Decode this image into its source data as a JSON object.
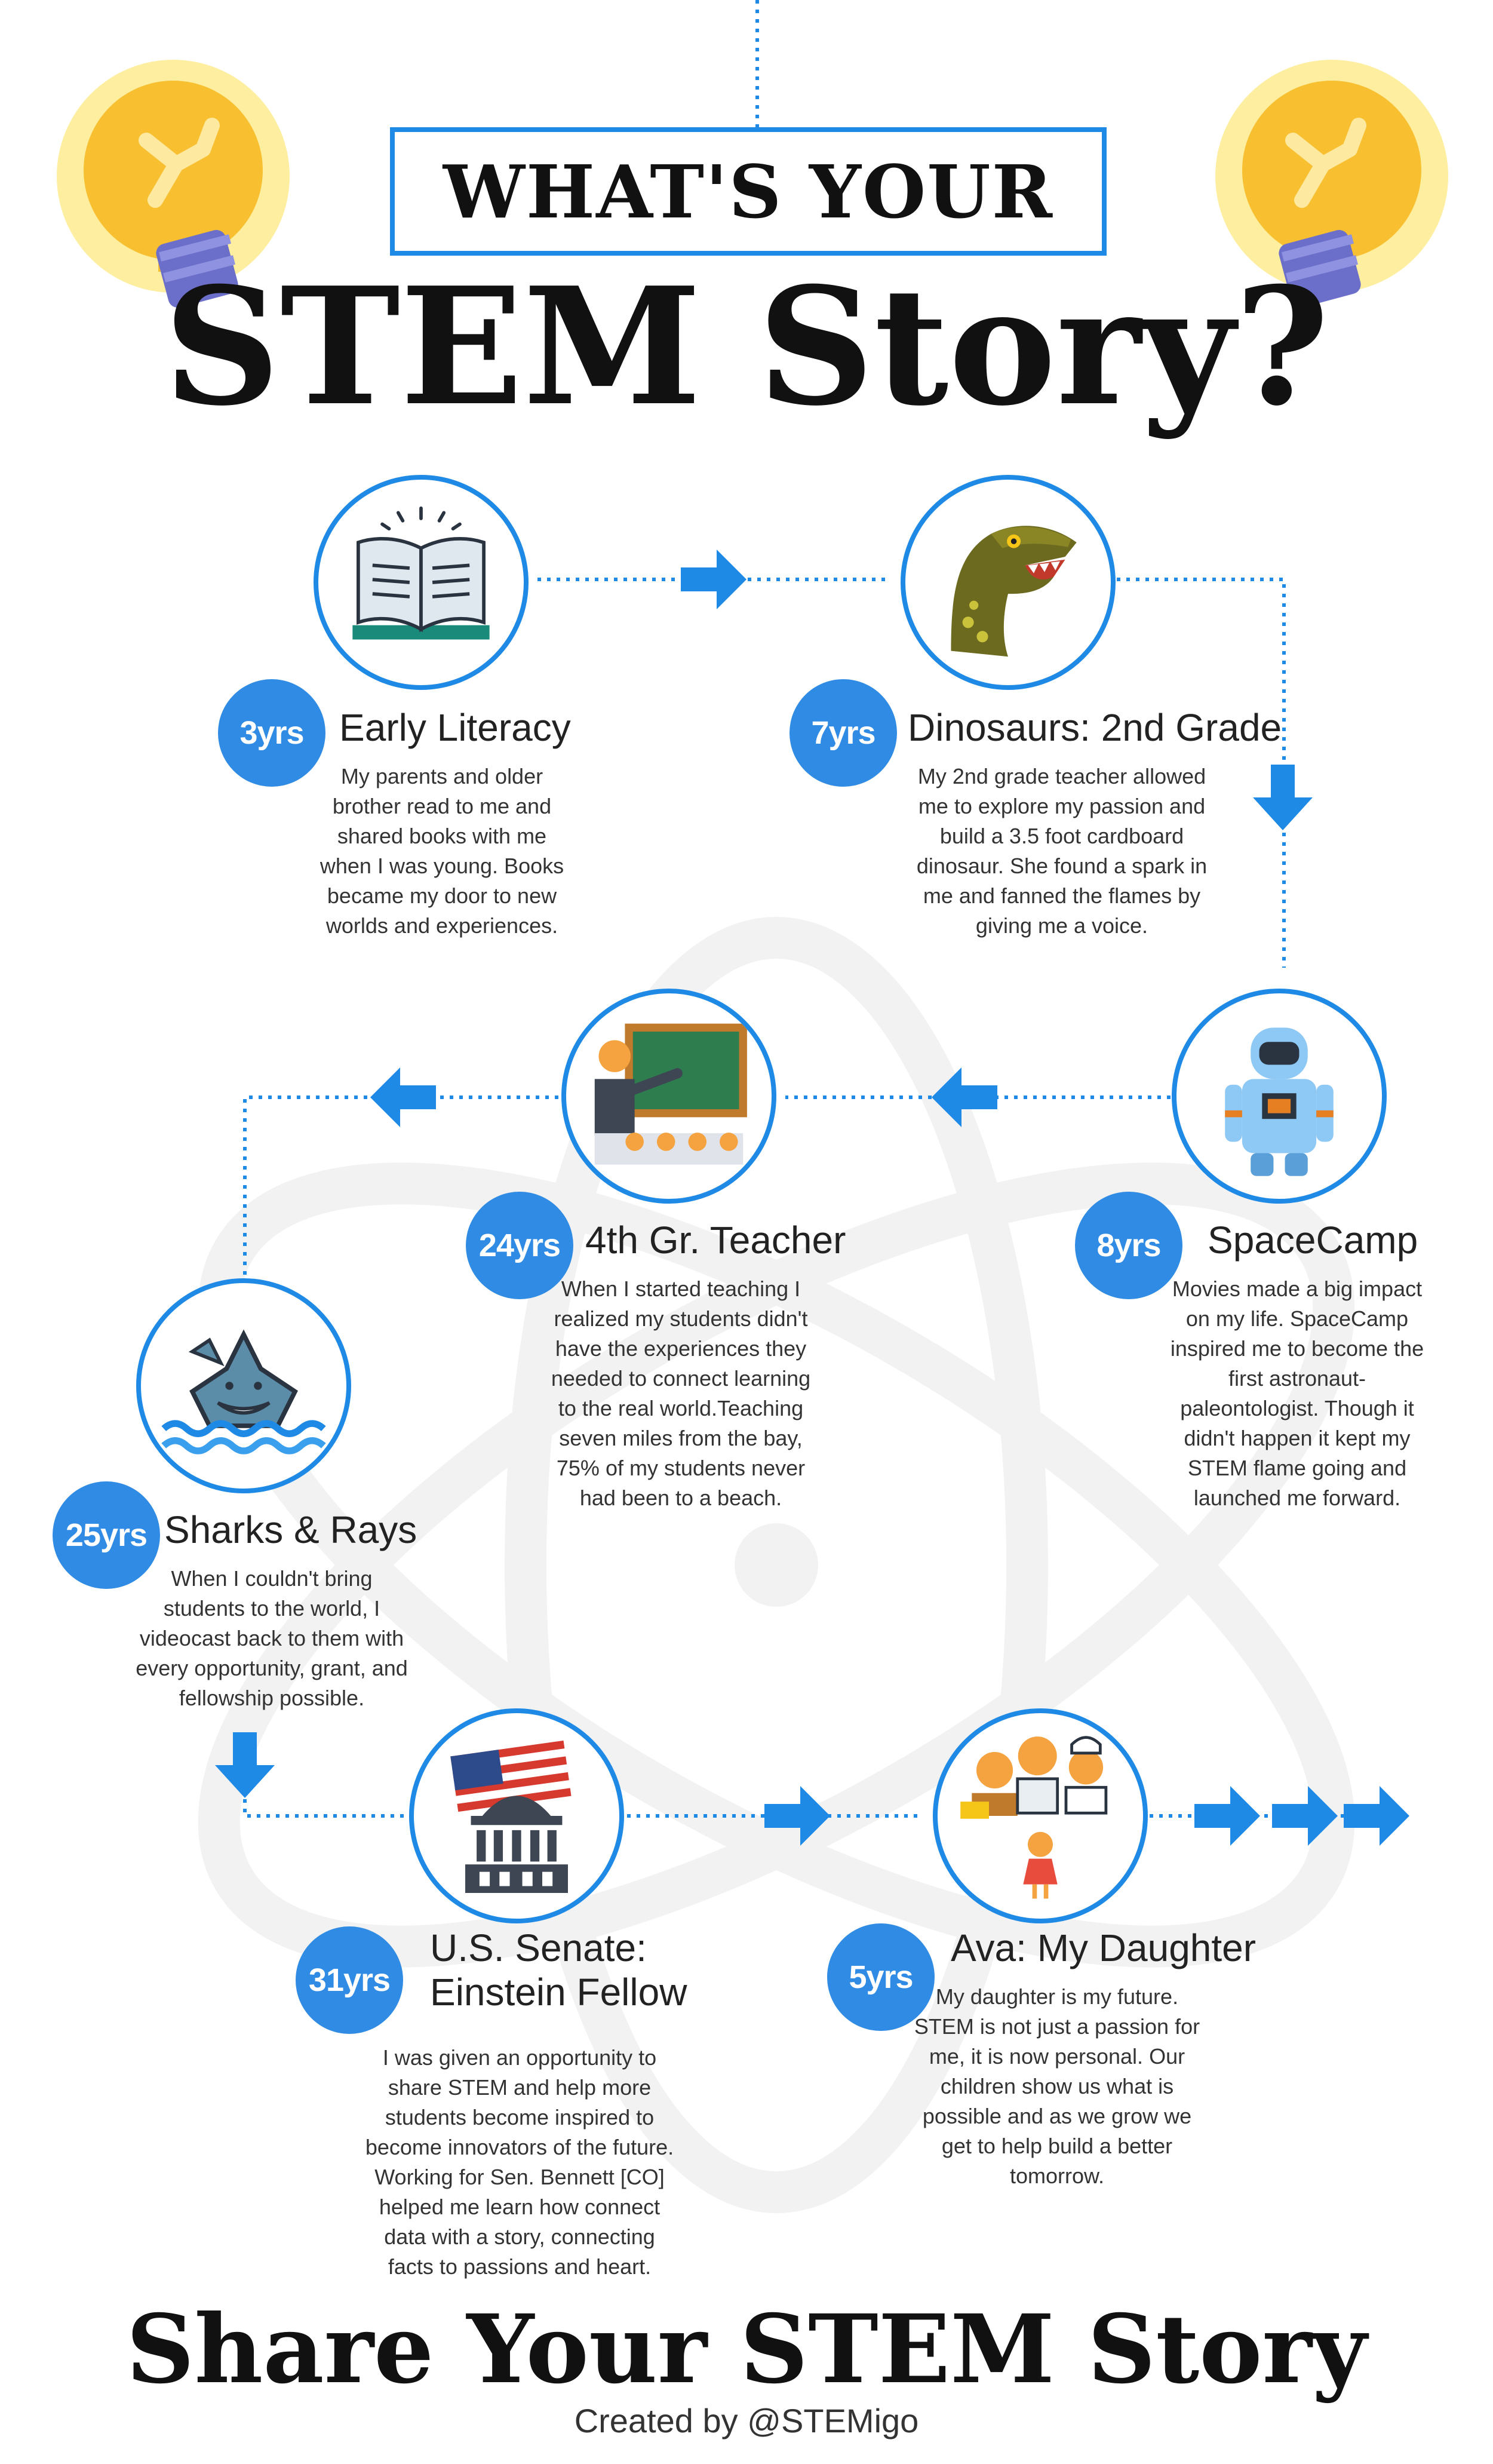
{
  "header": {
    "line1": "WHAT'S YOUR",
    "line2": "STEM Story?"
  },
  "milestones": [
    {
      "age": "3yrs",
      "title": "Early Literacy",
      "icon": "book-icon",
      "lines": [
        "My parents and older",
        "brother read to me and",
        "shared books with me",
        "when I was young. Books",
        "became my door to new",
        "worlds and experiences."
      ]
    },
    {
      "age": "7yrs",
      "title": "Dinosaurs: 2nd Grade",
      "icon": "dinosaur-icon",
      "lines": [
        "My 2nd grade teacher allowed",
        "me to explore my passion and",
        "build a 3.5 foot cardboard",
        "dinosaur. She found a spark in",
        "me and fanned the flames by",
        "giving me a voice."
      ]
    },
    {
      "age": "8yrs",
      "title": "SpaceCamp",
      "icon": "astronaut-icon",
      "lines": [
        "Movies made a big impact",
        "on my life. SpaceCamp",
        "inspired me to become the",
        "first astronaut-",
        "paleontologist. Though it",
        "didn't happen it kept my",
        "STEM flame going and",
        "launched me forward."
      ]
    },
    {
      "age": "24yrs",
      "title": "4th Gr. Teacher",
      "icon": "teacher-icon",
      "lines": [
        "When I started teaching I",
        "realized my students didn't",
        "have the experiences they",
        "needed to connect learning",
        "to the real world.Teaching",
        "seven miles from the bay,",
        "75% of my students never",
        "had been to a beach."
      ]
    },
    {
      "age": "25yrs",
      "title": "Sharks & Rays",
      "icon": "shark-icon",
      "lines": [
        "When I couldn't bring",
        "students to the world, I",
        "videocast back to them with",
        "every opportunity, grant, and",
        "fellowship possible."
      ]
    },
    {
      "age": "31yrs",
      "title": "U.S. Senate:",
      "title2": "Einstein Fellow",
      "icon": "capitol-flag-icon",
      "lines": [
        "I was given an opportunity to",
        "share STEM and help more",
        "students become inspired to",
        "become innovators of the future.",
        "Working for Sen. Bennett [CO]",
        "helped me learn how connect",
        "data with a story, connecting",
        "facts to passions and heart."
      ]
    },
    {
      "age": "5yrs",
      "title": "Ava: My Daughter",
      "icon": "careers-girl-icon",
      "lines": [
        "My daughter is my future.",
        "STEM is not just a passion for",
        "me, it is now personal. Our",
        "children show us what is",
        "possible and as we grow we",
        "get to help build a better",
        "tomorrow."
      ]
    }
  ],
  "footer": {
    "title": "Share Your STEM Story",
    "credit": "Created by @STEMigo"
  },
  "colors": {
    "accent": "#1f8ae6",
    "age_badge": "#2f8be3",
    "bulb_glow": "#fdeea0",
    "bulb": "#f8c030"
  }
}
